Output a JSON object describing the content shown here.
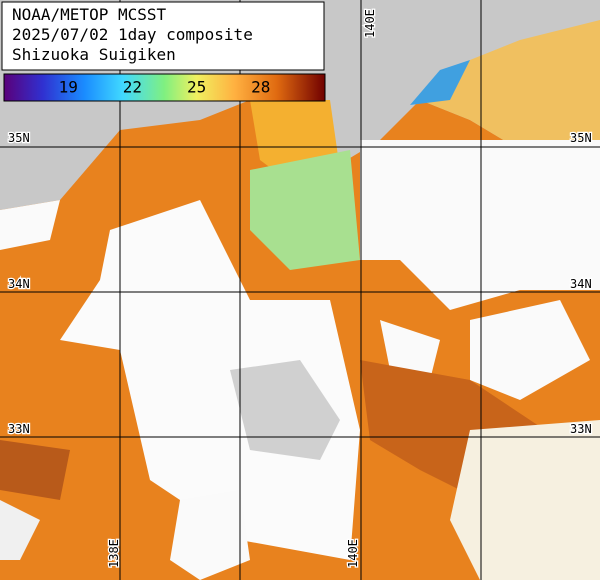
{
  "header": {
    "lines": [
      "NOAA/METOP MCSST",
      "2025/07/02 1day composite",
      "Shizuoka Suigiken"
    ]
  },
  "colorbar": {
    "range": [
      16,
      31
    ],
    "ticks": [
      19,
      22,
      25,
      28
    ]
  },
  "map": {
    "lat_labels": [
      "35N",
      "34N",
      "33N"
    ],
    "lon_labels_top": [
      "140E"
    ],
    "lon_labels_bottom": [
      "138E",
      "140E"
    ]
  }
}
